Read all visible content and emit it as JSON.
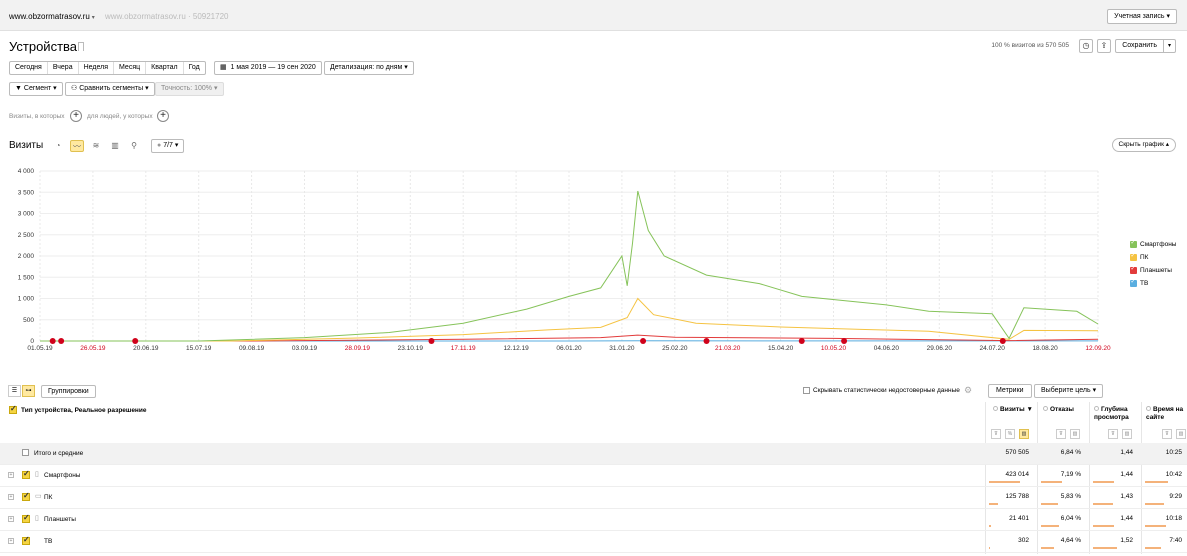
{
  "topbar": {
    "site": "www.obzormatrasov.ru",
    "counter": "www.obzormatrasov.ru · 50921720",
    "account": "Учетная запись"
  },
  "header": {
    "title": "Устройства",
    "visits_share": "100 % визитов из 570 505",
    "save": "Сохранить"
  },
  "periods": [
    "Сегодня",
    "Вчера",
    "Неделя",
    "Месяц",
    "Квартал",
    "Год"
  ],
  "date_range": "1 мая 2019 — 19 сен 2020",
  "detail": "Детализация: по дням",
  "segment": "Сегмент",
  "compare": "Сравнить сегменты",
  "accuracy": "Точность: 100%",
  "conditions": {
    "visits": "Визиты, в которых",
    "people": "для людей, у которых"
  },
  "chart_panel": {
    "metric": "Визиты",
    "series_count": "7/7",
    "hide": "Скрыть график"
  },
  "chart_data": {
    "type": "line",
    "y_ticks": [
      "4 000",
      "3 500",
      "3 000",
      "2 500",
      "2 000",
      "1 500",
      "1 000",
      "500",
      "0"
    ],
    "ylim": [
      0,
      4000
    ],
    "x_ticks": [
      {
        "label": "01.05.19",
        "red": false
      },
      {
        "label": "26.05.19",
        "red": true
      },
      {
        "label": "20.06.19",
        "red": false
      },
      {
        "label": "15.07.19",
        "red": false
      },
      {
        "label": "09.08.19",
        "red": false
      },
      {
        "label": "03.09.19",
        "red": false
      },
      {
        "label": "28.09.19",
        "red": true
      },
      {
        "label": "23.10.19",
        "red": false
      },
      {
        "label": "17.11.19",
        "red": true
      },
      {
        "label": "12.12.19",
        "red": false
      },
      {
        "label": "06.01.20",
        "red": false
      },
      {
        "label": "31.01.20",
        "red": false
      },
      {
        "label": "25.02.20",
        "red": false
      },
      {
        "label": "21.03.20",
        "red": true
      },
      {
        "label": "15.04.20",
        "red": false
      },
      {
        "label": "10.05.20",
        "red": true
      },
      {
        "label": "04.06.20",
        "red": false
      },
      {
        "label": "29.06.20",
        "red": false
      },
      {
        "label": "24.07.20",
        "red": false
      },
      {
        "label": "18.08.20",
        "red": false
      },
      {
        "label": "12.09.20",
        "red": true
      }
    ],
    "grid": true,
    "legend_position": "right",
    "series": [
      {
        "name": "Смартфоны",
        "color": "#86c35a",
        "points": [
          [
            0,
            0
          ],
          [
            0.15,
            0
          ],
          [
            0.25,
            80
          ],
          [
            0.33,
            200
          ],
          [
            0.4,
            420
          ],
          [
            0.46,
            750
          ],
          [
            0.5,
            1050
          ],
          [
            0.53,
            1250
          ],
          [
            0.55,
            2000
          ],
          [
            0.555,
            1300
          ],
          [
            0.56,
            2300
          ],
          [
            0.565,
            3530
          ],
          [
            0.575,
            2600
          ],
          [
            0.59,
            2000
          ],
          [
            0.63,
            1550
          ],
          [
            0.68,
            1350
          ],
          [
            0.72,
            1050
          ],
          [
            0.76,
            950
          ],
          [
            0.8,
            850
          ],
          [
            0.84,
            700
          ],
          [
            0.9,
            640
          ],
          [
            0.916,
            60
          ],
          [
            0.93,
            780
          ],
          [
            0.98,
            700
          ],
          [
            1.0,
            400
          ]
        ]
      },
      {
        "name": "ПК",
        "color": "#f5c342",
        "points": [
          [
            0,
            0
          ],
          [
            0.18,
            0
          ],
          [
            0.3,
            70
          ],
          [
            0.4,
            150
          ],
          [
            0.48,
            260
          ],
          [
            0.53,
            320
          ],
          [
            0.555,
            550
          ],
          [
            0.565,
            1000
          ],
          [
            0.58,
            620
          ],
          [
            0.62,
            420
          ],
          [
            0.7,
            330
          ],
          [
            0.78,
            270
          ],
          [
            0.84,
            230
          ],
          [
            0.916,
            40
          ],
          [
            0.93,
            250
          ],
          [
            1.0,
            240
          ]
        ]
      },
      {
        "name": "Планшеты",
        "color": "#e23b3b",
        "points": [
          [
            0,
            0
          ],
          [
            0.2,
            0
          ],
          [
            0.4,
            40
          ],
          [
            0.53,
            80
          ],
          [
            0.565,
            140
          ],
          [
            0.6,
            90
          ],
          [
            0.75,
            60
          ],
          [
            0.916,
            10
          ],
          [
            1.0,
            40
          ]
        ]
      },
      {
        "name": "ТВ",
        "color": "#5aaee0",
        "points": [
          [
            0,
            0
          ],
          [
            0.5,
            1
          ],
          [
            0.565,
            5
          ],
          [
            1.0,
            2
          ]
        ]
      }
    ]
  },
  "table": {
    "groupings": "Группировки",
    "hide_unreliable": "Скрывать статистически недостоверные данные",
    "metrics": "Метрики",
    "goal": "Выберите цель",
    "dimension": "Тип устройства, Реальное разрешение",
    "columns": [
      {
        "label": "Визиты",
        "sorted": "▼"
      },
      {
        "label": "Отказы",
        "sorted": ""
      },
      {
        "label": "Глубина просмотра",
        "sorted": ""
      },
      {
        "label": "Время на сайте",
        "sorted": ""
      }
    ],
    "total_row": {
      "label": "Итого и средние",
      "values": [
        "570 505",
        "6,84 %",
        "1,44",
        "10:25"
      ]
    },
    "rows": [
      {
        "label": "Смартфоны",
        "icon": "smartphone-icon",
        "values": [
          "423 014",
          "7,19 %",
          "1,44",
          "10:42"
        ],
        "share": [
          0.74,
          0.5,
          0.5,
          0.55
        ]
      },
      {
        "label": "ПК",
        "icon": "pc-icon",
        "values": [
          "125 788",
          "5,83 %",
          "1,43",
          "9:29"
        ],
        "share": [
          0.22,
          0.4,
          0.48,
          0.45
        ]
      },
      {
        "label": "Планшеты",
        "icon": "tablet-icon",
        "values": [
          "21 401",
          "6,04 %",
          "1,44",
          "10:18"
        ],
        "share": [
          0.04,
          0.42,
          0.5,
          0.5
        ]
      },
      {
        "label": "ТВ",
        "icon": "tv-icon",
        "values": [
          "302",
          "4,64 %",
          "1,52",
          "7:40"
        ],
        "share": [
          0.0,
          0.32,
          0.56,
          0.38
        ]
      }
    ]
  }
}
